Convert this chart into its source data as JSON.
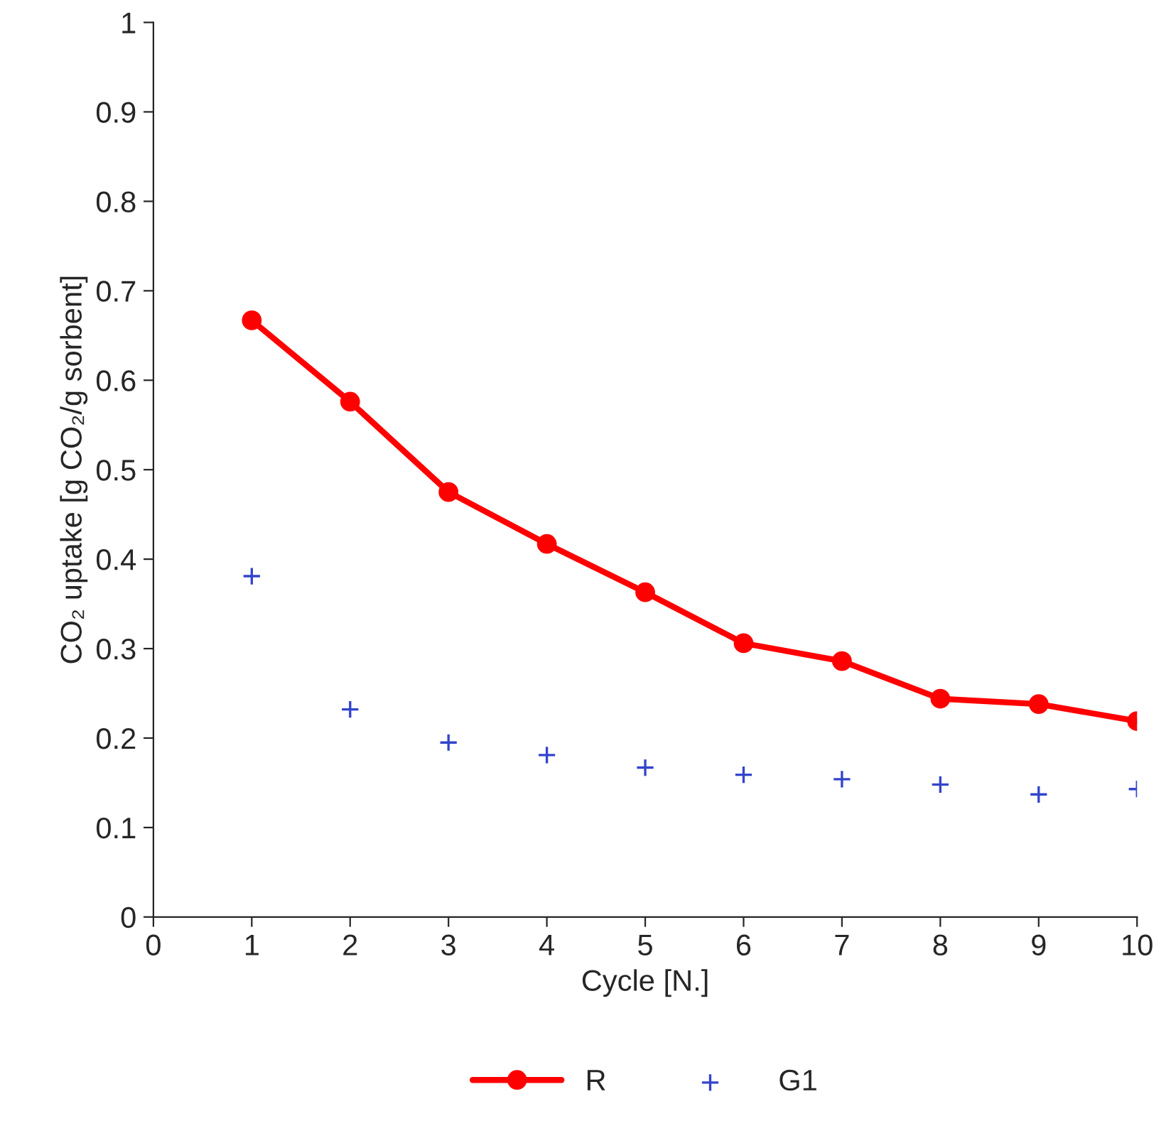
{
  "chart_data": {
    "type": "line",
    "xlabel": "Cycle [N.]",
    "ylabel": "CO₂ uptake [g CO₂/g sorbent]",
    "x": [
      1,
      2,
      3,
      4,
      5,
      6,
      7,
      8,
      9,
      10
    ],
    "series": [
      {
        "name": "R",
        "color": "#ff0000",
        "marker": "circle",
        "line_style": "solid",
        "values": [
          0.667,
          0.576,
          0.475,
          0.417,
          0.363,
          0.306,
          0.286,
          0.244,
          0.238,
          0.219
        ]
      },
      {
        "name": "G1",
        "type": "scatter",
        "color": "#3344cc",
        "marker": "cross",
        "values": [
          0.381,
          0.232,
          0.195,
          0.181,
          0.167,
          0.159,
          0.154,
          0.148,
          0.137,
          0.143
        ]
      }
    ],
    "xlim": [
      0,
      10
    ],
    "xticks": [
      0,
      1,
      2,
      3,
      4,
      5,
      6,
      7,
      8,
      9,
      10
    ],
    "ylim": [
      0,
      1
    ],
    "yticks": [
      0,
      0.1,
      0.2,
      0.3,
      0.4,
      0.5,
      0.6,
      0.7,
      0.8,
      0.9,
      1
    ],
    "grid": false,
    "legend": "bottom"
  }
}
